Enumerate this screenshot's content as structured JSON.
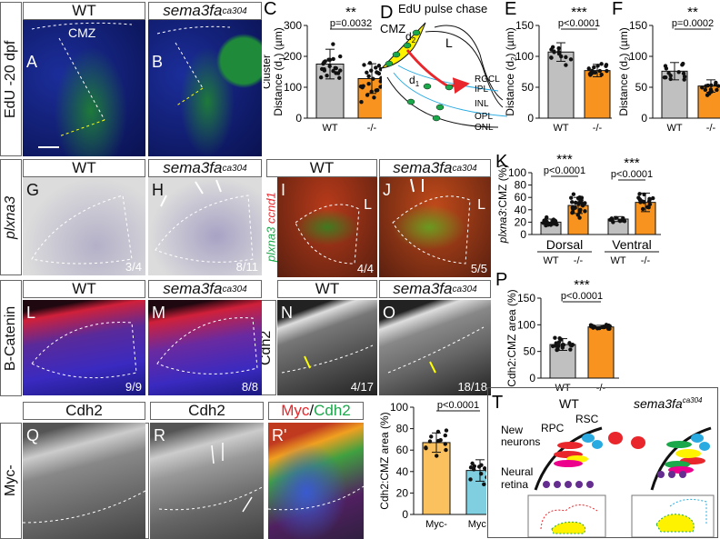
{
  "row_labels": {
    "edu": "EdU -20 dpf",
    "plxna3": "plxna3",
    "bcat": "B-Catenin",
    "cdh2": "Cdh2",
    "mycneg": "Myc-",
    "mycpos": "Myc+",
    "plxccnd_a": "plxna3",
    "plxccnd_sep": "/",
    "plxccnd_b": "ccnd1"
  },
  "genotypes": {
    "wt": "WT",
    "mut": "sema3fa",
    "mut_sup": "ca304"
  },
  "panels": {
    "A": {
      "letter": "A",
      "header": "WT",
      "cmz": "CMZ"
    },
    "B": {
      "letter": "B"
    },
    "G": {
      "letter": "G",
      "count": "3/4"
    },
    "H": {
      "letter": "H",
      "count": "8/11"
    },
    "I": {
      "letter": "I",
      "count": "4/4",
      "l": "L"
    },
    "J": {
      "letter": "J",
      "count": "5/5",
      "l": "L"
    },
    "L": {
      "letter": "L",
      "count": "9/9"
    },
    "M": {
      "letter": "M",
      "count": "8/8"
    },
    "N": {
      "letter": "N",
      "count": "4/17"
    },
    "O": {
      "letter": "O",
      "count": "18/18"
    },
    "Q": {
      "letter": "Q",
      "header": "Cdh2"
    },
    "R": {
      "letter": "R",
      "header": "Cdh2"
    },
    "R2": {
      "letter": "R'",
      "header_a": "Myc",
      "header_sep": "/",
      "header_b": "Cdh2"
    }
  },
  "diagram_D": {
    "letter": "D",
    "title": "EdU pulse chase",
    "cmz": "CMZ",
    "lens": "L",
    "d1": "d",
    "d1_sub": "1",
    "d2": "d",
    "d2_sub": "2",
    "layers": [
      "RGCL",
      "IPL",
      "INL",
      "OPL",
      "ONL"
    ]
  },
  "diagram_T": {
    "letter": "T",
    "wt": "WT",
    "mut": "sema3fa",
    "mut_sup": "ca304",
    "rpc": "RPC",
    "rsc": "RSC",
    "new_neurons_1": "New",
    "new_neurons_2": "neurons",
    "neural_retina_1": "Neural",
    "neural_retina_2": "retina"
  },
  "colors": {
    "wt_bar": "#c0c0c0",
    "mut_bar": "#f7931e",
    "myc_neg": "#fbc15e",
    "myc_pos": "#7fcfe0",
    "red": "#e8262b",
    "yellow": "#fff200",
    "green": "#1aa84a",
    "cyan": "#29abe2",
    "magenta": "#ec008c",
    "purple": "#662d91"
  },
  "chart_data": [
    {
      "id": "C",
      "type": "bar",
      "letter": "C",
      "ylabel_pre": "Cluster",
      "ylabel": "Distance (d",
      "ylabel_sub": "1",
      "ylabel_post": ") (µm)",
      "categories": [
        "WT",
        "-/-"
      ],
      "values": [
        175,
        128
      ],
      "errors": [
        48,
        48
      ],
      "ylim": [
        0,
        300
      ],
      "ticks": [
        0,
        100,
        200,
        300
      ],
      "sig": [
        {
          "stars": "**",
          "p": "p=0.0032",
          "from": 0,
          "to": 1
        }
      ],
      "colors": [
        "#c0c0c0",
        "#f7931e"
      ],
      "n": [
        22,
        26
      ]
    },
    {
      "id": "E",
      "type": "bar",
      "letter": "E",
      "ylabel": "Distance (d",
      "ylabel_sub": "2",
      "ylabel_post": ") (µm)",
      "categories": [
        "WT",
        "-/-"
      ],
      "values": [
        107,
        77
      ],
      "errors": [
        15,
        10
      ],
      "ylim": [
        0,
        150
      ],
      "ticks": [
        0,
        50,
        100,
        150
      ],
      "sig": [
        {
          "stars": "***",
          "p": "p<0.0001",
          "from": 0,
          "to": 1
        }
      ],
      "colors": [
        "#c0c0c0",
        "#f7931e"
      ],
      "n": [
        13,
        15
      ]
    },
    {
      "id": "F",
      "type": "bar",
      "letter": "F",
      "ylabel": "Distance (d",
      "ylabel_sub": "2",
      "ylabel_post": ") (µm)",
      "categories": [
        "WT",
        "-/-"
      ],
      "values": [
        76,
        52
      ],
      "errors": [
        14,
        10
      ],
      "ylim": [
        0,
        150
      ],
      "ticks": [
        0,
        50,
        100,
        150
      ],
      "sig": [
        {
          "stars": "**",
          "p": "p=0.0002",
          "from": 0,
          "to": 1
        }
      ],
      "colors": [
        "#c0c0c0",
        "#f7931e"
      ],
      "n": [
        13,
        15
      ]
    },
    {
      "id": "K",
      "type": "bar",
      "letter": "K",
      "ylabel_italic": "plxna3",
      "ylabel": ":CMZ (%)",
      "categories": [
        "WT",
        "-/-",
        "WT",
        "-/-"
      ],
      "groups": [
        "Dorsal",
        "Ventral"
      ],
      "values": [
        20,
        47,
        25,
        52
      ],
      "errors": [
        5,
        13,
        4,
        15
      ],
      "ylim": [
        0,
        100
      ],
      "ticks": [
        0,
        20,
        40,
        60,
        80,
        100
      ],
      "sig": [
        {
          "stars": "***",
          "p": "p<0.0001",
          "from": 0,
          "to": 1
        },
        {
          "stars": "***",
          "p": "p<0.0001",
          "from": 2,
          "to": 3
        }
      ],
      "colors": [
        "#c0c0c0",
        "#f7931e",
        "#c0c0c0",
        "#f7931e"
      ],
      "n": [
        20,
        24,
        9,
        16
      ]
    },
    {
      "id": "P",
      "type": "bar",
      "letter": "P",
      "ylabel": "Cdh2:CMZ area (%)",
      "categories": [
        "WT",
        "-/-"
      ],
      "values": [
        63,
        96
      ],
      "errors": [
        11,
        3
      ],
      "ylim": [
        0,
        150
      ],
      "ticks": [
        0,
        50,
        100,
        150
      ],
      "sig": [
        {
          "stars": "***",
          "p": "p<0.0001",
          "from": 0,
          "to": 1
        }
      ],
      "colors": [
        "#c0c0c0",
        "#f7931e"
      ],
      "n": [
        18,
        18
      ]
    },
    {
      "id": "S",
      "type": "bar",
      "letter": "S",
      "ylabel": "Cdh2:CMZ area (%)",
      "categories": [
        "Myc-",
        "Myc+"
      ],
      "values": [
        67,
        41
      ],
      "errors": [
        9,
        10
      ],
      "ylim": [
        0,
        100
      ],
      "ticks": [
        0,
        20,
        40,
        60,
        80,
        100
      ],
      "sig": [
        {
          "stars": "***",
          "p": "p<0.0001",
          "from": 0,
          "to": 1
        }
      ],
      "colors": [
        "#fbc15e",
        "#7fcfe0"
      ],
      "n": [
        12,
        13
      ]
    }
  ]
}
